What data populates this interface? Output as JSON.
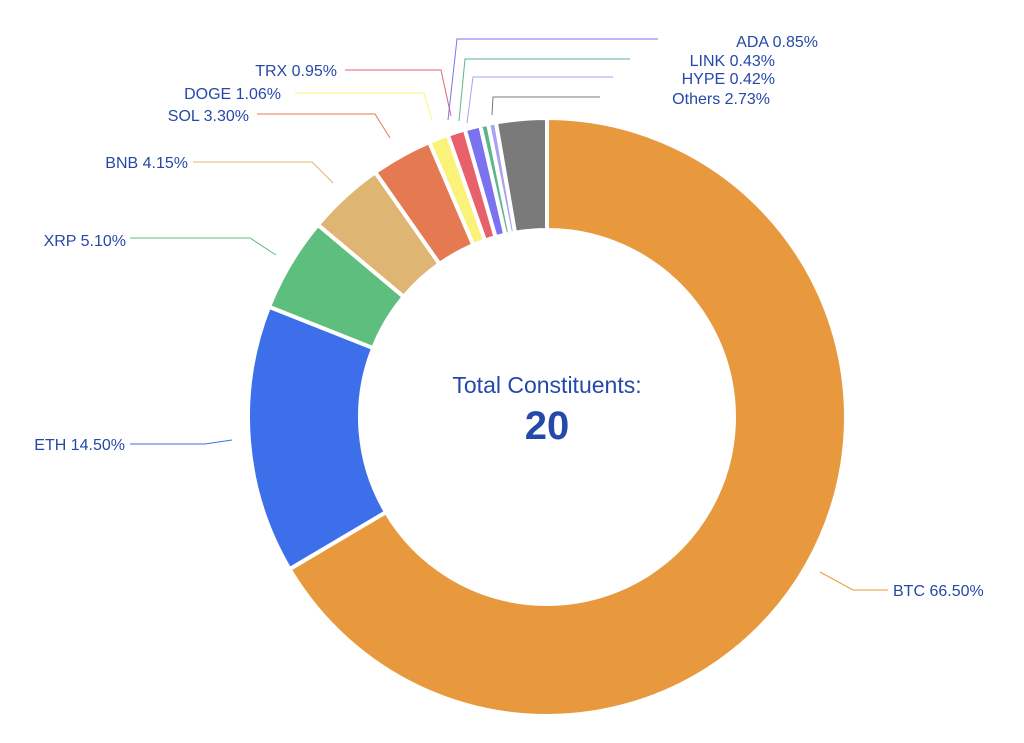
{
  "chart_data": {
    "type": "pie",
    "variant": "donut",
    "center_label": "Total Constituents:",
    "center_value": "20",
    "unit": "%",
    "slices": [
      {
        "name": "BTC",
        "value": 66.5,
        "label": "BTC 66.50%",
        "color": "#E8993E"
      },
      {
        "name": "ETH",
        "value": 14.5,
        "label": "ETH 14.50%",
        "color": "#3E6FEA"
      },
      {
        "name": "XRP",
        "value": 5.1,
        "label": "XRP 5.10%",
        "color": "#5DBE7E"
      },
      {
        "name": "BNB",
        "value": 4.15,
        "label": "BNB 4.15%",
        "color": "#DFB574"
      },
      {
        "name": "SOL",
        "value": 3.3,
        "label": "SOL 3.30%",
        "color": "#E57A52"
      },
      {
        "name": "DOGE",
        "value": 1.06,
        "label": "DOGE 1.06%",
        "color": "#FBF27A"
      },
      {
        "name": "TRX",
        "value": 0.95,
        "label": "TRX 0.95%",
        "color": "#E8606A"
      },
      {
        "name": "ADA",
        "value": 0.85,
        "label": "ADA 0.85%",
        "color": "#7B72F0"
      },
      {
        "name": "LINK",
        "value": 0.43,
        "label": "LINK 0.43%",
        "color": "#5DB58A"
      },
      {
        "name": "HYPE",
        "value": 0.42,
        "label": "HYPE 0.42%",
        "color": "#A7A3F0"
      },
      {
        "name": "Others",
        "value": 2.73,
        "label": "Others 2.73%",
        "color": "#7A7A7A"
      }
    ],
    "text_color": "#2549A8"
  }
}
